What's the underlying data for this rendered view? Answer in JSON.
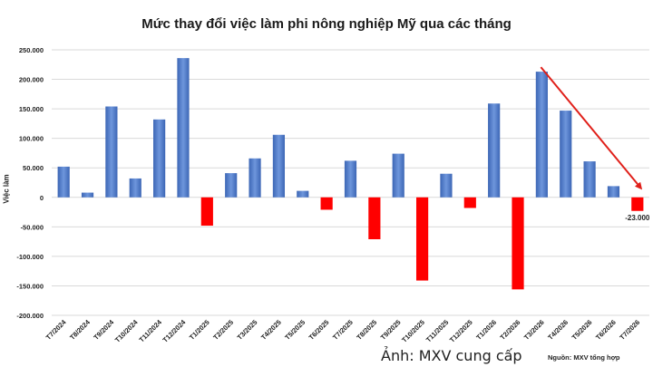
{
  "chart_data": {
    "type": "bar",
    "title": "Mức thay đổi việc làm phi nông nghiệp Mỹ qua các tháng",
    "ylabel": "Việc làm",
    "xlabel": "",
    "ylim": [
      -200000,
      250000
    ],
    "yticks": [
      -200000,
      -150000,
      -100000,
      -50000,
      0,
      50000,
      100000,
      150000,
      200000,
      250000
    ],
    "ytick_labels": [
      "-200.000",
      "-150.000",
      "-100.000",
      "-50.000",
      "0",
      "50.000",
      "100.000",
      "150.000",
      "200.000",
      "250.000"
    ],
    "grid": true,
    "categories": [
      "T7/2024",
      "T8/2024",
      "T9/2024",
      "T10/2024",
      "T11/2024",
      "T12/2024",
      "T1/2025",
      "T2/2025",
      "T3/2025",
      "T4/2025",
      "T5/2025",
      "T6/2025",
      "T7/2025",
      "T8/2025",
      "T9/2025",
      "T10/2025",
      "T11/2025",
      "T12/2025",
      "T1/2026",
      "T2/2026",
      "T3/2026",
      "T4/2026",
      "T5/2026",
      "T6/2026",
      "T7/2026"
    ],
    "values": [
      52000,
      8000,
      154000,
      32000,
      132000,
      236000,
      -48000,
      41000,
      66000,
      106000,
      11000,
      -21000,
      62000,
      -71000,
      74000,
      -141000,
      40000,
      -18000,
      159000,
      -156000,
      213000,
      147000,
      61000,
      19000,
      -23000
    ],
    "colors": {
      "positive": "#4472C4",
      "negative": "#FF0000",
      "arrow": "#E0201A"
    },
    "data_labels": [
      {
        "category": "T7/2026",
        "text": "-23.000"
      }
    ],
    "annotation": "trend-arrow from T3/2026 to T7/2026"
  },
  "source_note": "Nguồn: MXV tổng hợp",
  "photo_credit": "Ảnh: MXV cung cấp"
}
